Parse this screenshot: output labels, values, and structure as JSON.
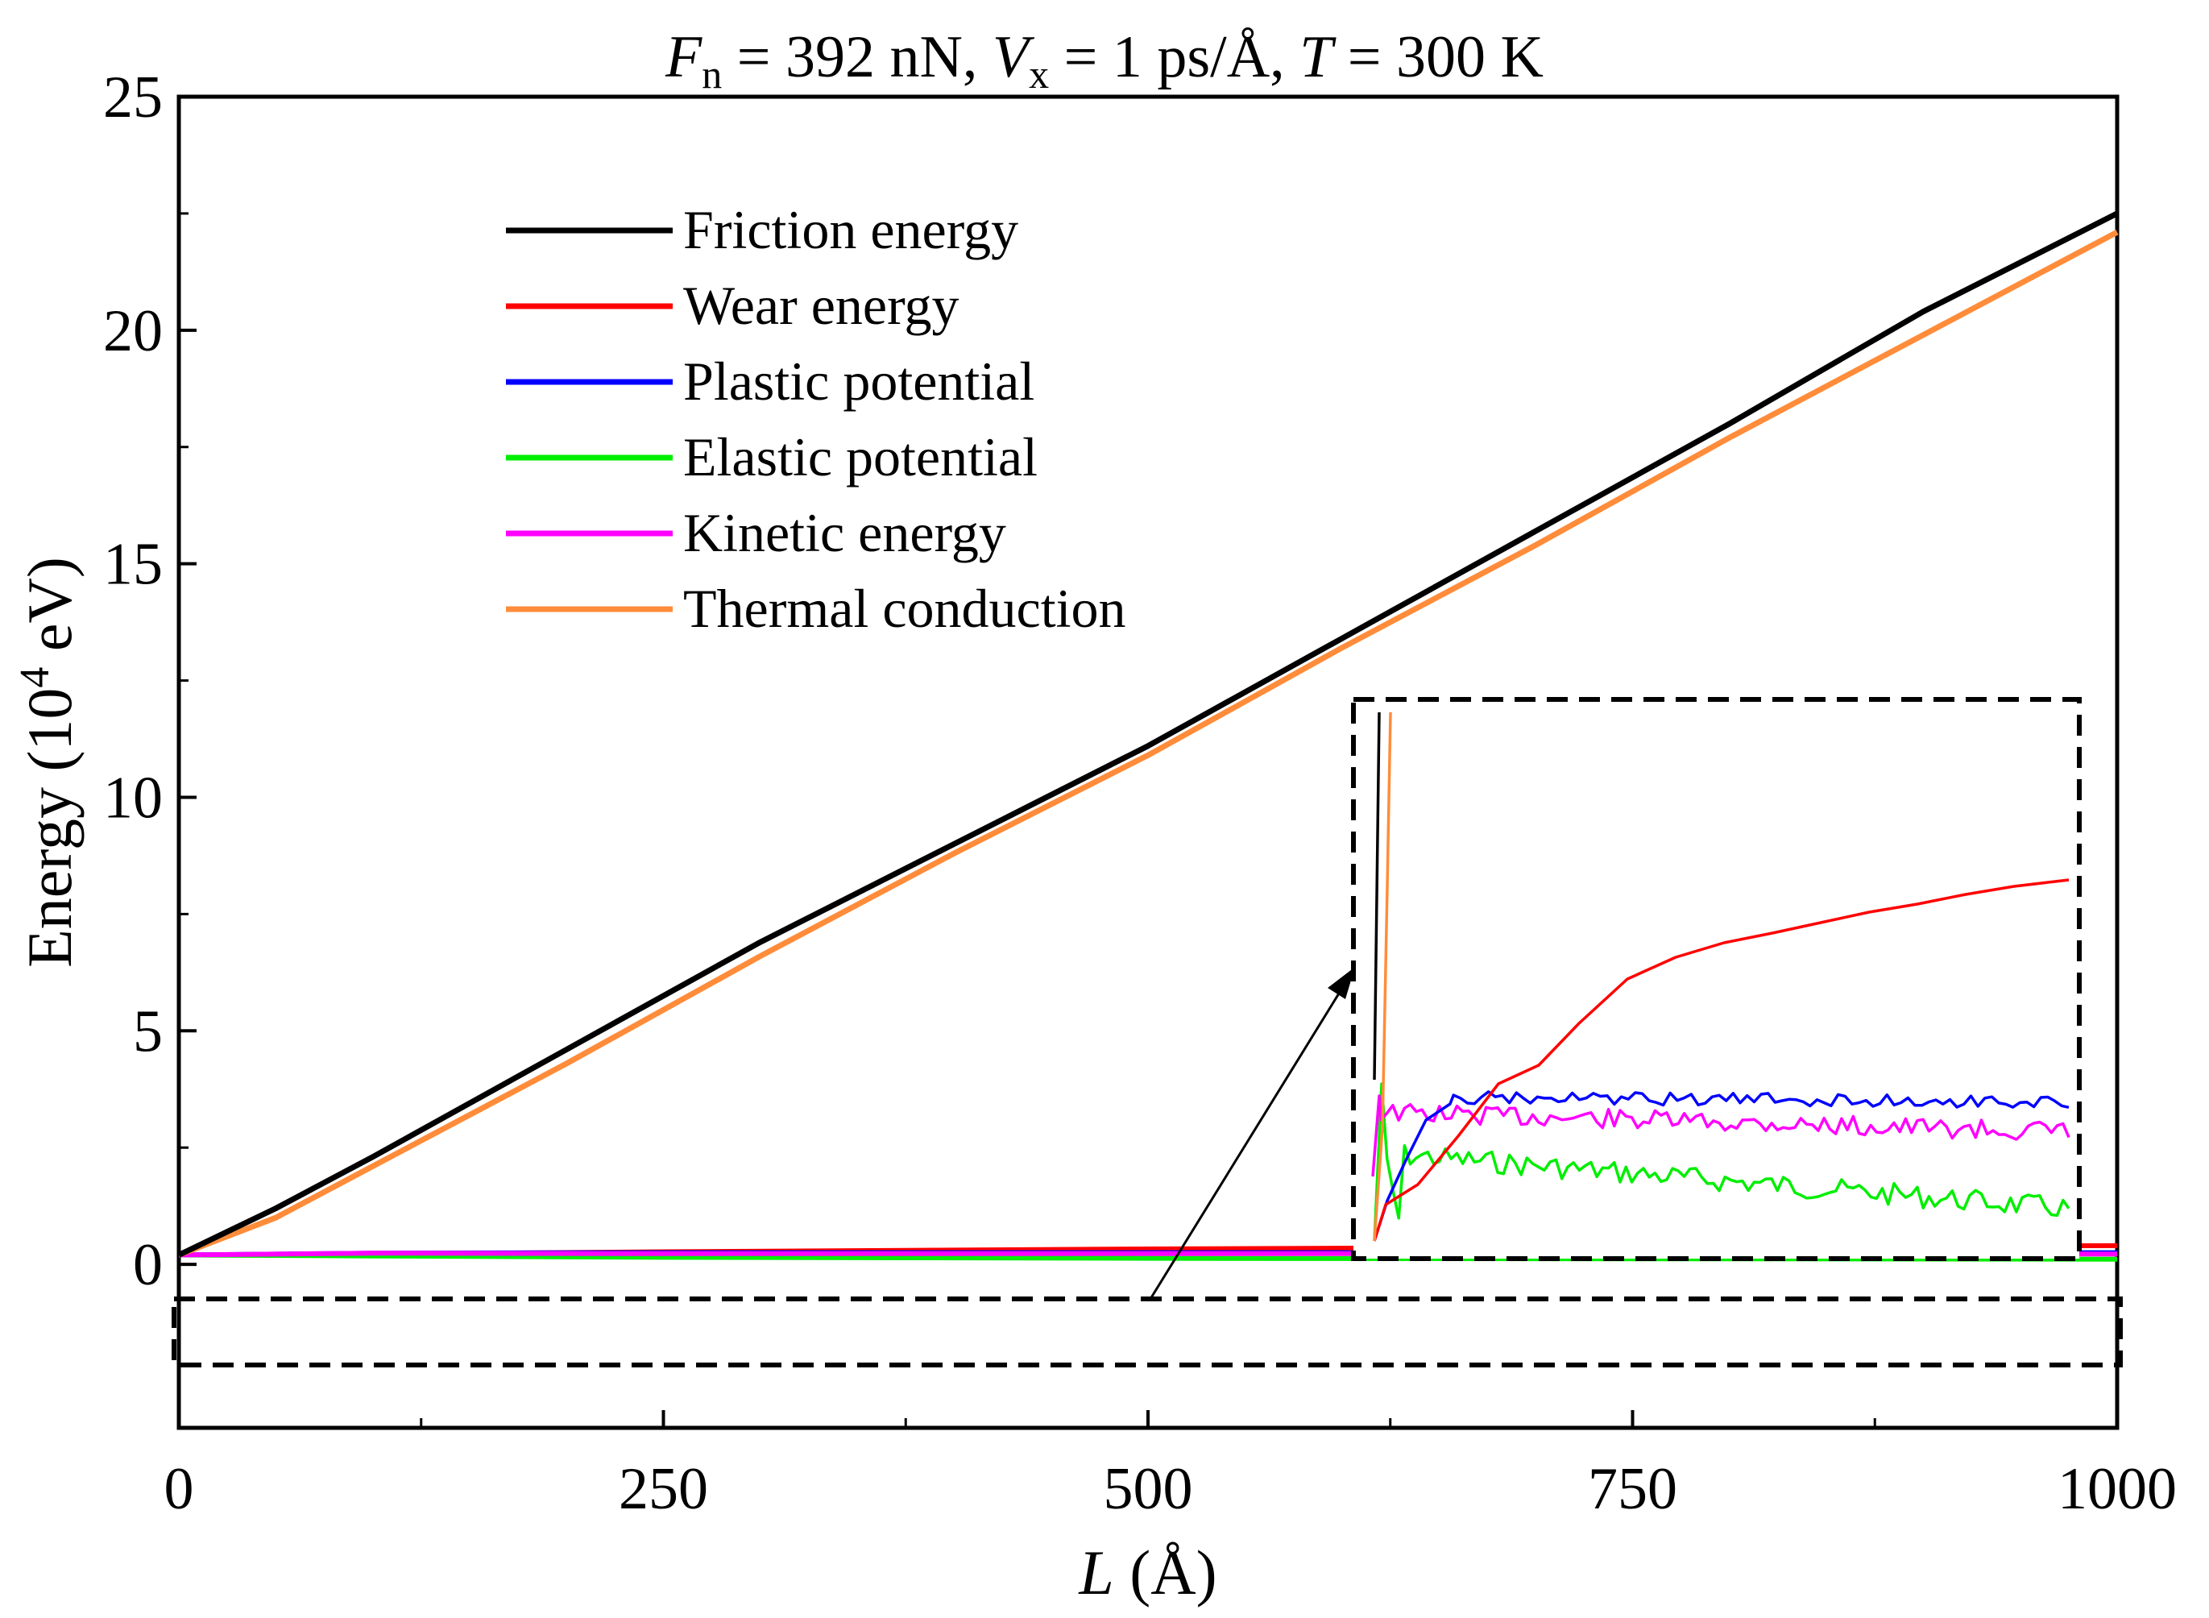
{
  "chart_data": {
    "type": "line",
    "title": {
      "fn_symbol": "F",
      "fn_sub": "n",
      "fn_rest": " = 392 nN, ",
      "vx_symbol": "V",
      "vx_sub": "x",
      "vx_rest": " = 1 ps/Å, ",
      "t_symbol": "T",
      "t_rest": " = 300 K"
    },
    "xlabel": {
      "symbol": "L",
      "unit": " (Å)"
    },
    "ylabel": {
      "text": "Energy (10",
      "exp": "4",
      "unit": " eV)"
    },
    "xlim": [
      0,
      1000
    ],
    "ylim": [
      -3.5,
      25
    ],
    "xticks": [
      0,
      250,
      500,
      750,
      1000
    ],
    "xtick_labels": [
      "0",
      "250",
      "500",
      "750",
      "1000"
    ],
    "yticks": [
      0,
      5,
      10,
      15,
      20,
      25
    ],
    "ytick_labels": [
      "0",
      "5",
      "10",
      "15",
      "20",
      "25"
    ],
    "legend_position": "upper-left",
    "series": [
      {
        "name": "Friction energy",
        "color": "#000000",
        "x": [
          0,
          50,
          100,
          200,
          300,
          400,
          500,
          600,
          700,
          800,
          900,
          1000
        ],
        "y": [
          0.2,
          1.2,
          2.3,
          4.6,
          6.9,
          9.0,
          11.1,
          13.4,
          15.7,
          18.0,
          20.4,
          22.5
        ]
      },
      {
        "name": "Wear energy",
        "color": "#ff0000",
        "x": [
          0,
          100,
          250,
          500,
          750,
          1000
        ],
        "y": [
          0.2,
          0.22,
          0.27,
          0.33,
          0.37,
          0.4
        ]
      },
      {
        "name": "Plastic potential",
        "color": "#0000ff",
        "x": [
          0,
          100,
          250,
          500,
          750,
          1000
        ],
        "y": [
          0.2,
          0.24,
          0.25,
          0.25,
          0.25,
          0.25
        ]
      },
      {
        "name": "Elastic potential",
        "color": "#00ee00",
        "x": [
          0,
          100,
          250,
          500,
          750,
          1000
        ],
        "y": [
          0.2,
          0.18,
          0.15,
          0.13,
          0.12,
          0.11
        ]
      },
      {
        "name": "Kinetic energy",
        "color": "#ff00ff",
        "x": [
          0,
          100,
          250,
          500,
          750,
          1000
        ],
        "y": [
          0.2,
          0.24,
          0.23,
          0.23,
          0.23,
          0.22
        ]
      },
      {
        "name": "Thermal conduction",
        "color": "#ff8c3a",
        "x": [
          0,
          50,
          100,
          200,
          300,
          400,
          500,
          600,
          700,
          800,
          900,
          1000
        ],
        "y": [
          0.2,
          1.0,
          2.1,
          4.3,
          6.6,
          8.8,
          10.9,
          13.2,
          15.4,
          17.7,
          19.9,
          22.1
        ]
      }
    ],
    "annotations": {
      "zoom_region": "dashed box around y≈0 band (0–1000 Å)",
      "inset": "zoomed view of low-energy curves, top-right of inner plot"
    }
  }
}
